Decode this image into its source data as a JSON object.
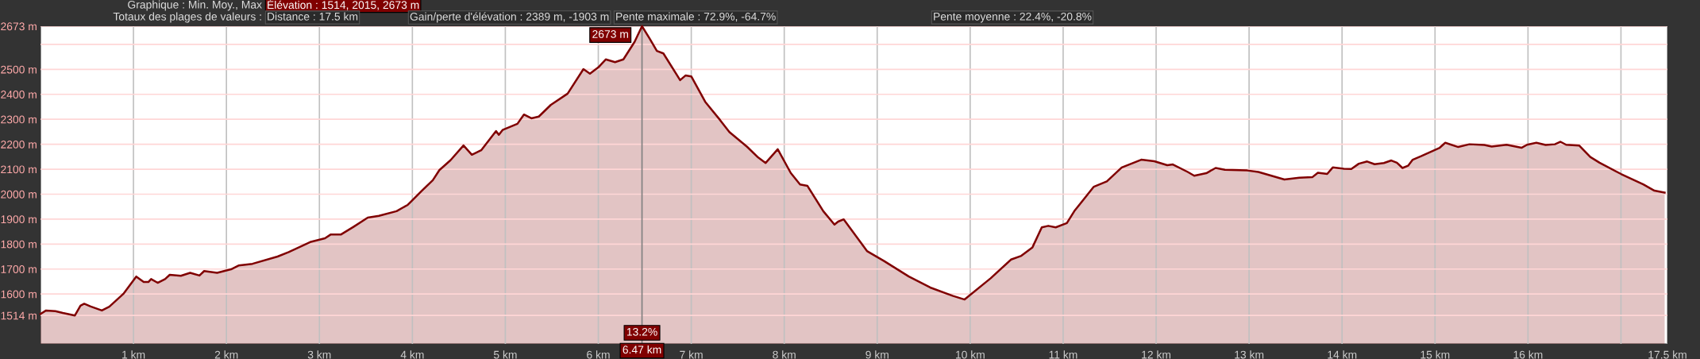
{
  "chart_data": {
    "type": "area",
    "title": "Graphique : Min. Moy., Max",
    "subtitle": "Élévation : 1514, 2015, 2673 m",
    "annotations": [
      "Totaux des plages de valeurs :",
      "Distance : 17.5 km",
      "Gain/perte d'élévation : 2389 m, -1903 m",
      "Pente maximale : 72.9%, -64.7%",
      "Pente moyenne : 22.4%, -20.8%",
      {
        "text": "2673 m",
        "x": 6.47,
        "y": 2673
      },
      {
        "text": "13.2%",
        "x": 6.47
      }
    ],
    "x": [
      0,
      0.06,
      0.16,
      0.24,
      0.37,
      0.43,
      0.47,
      0.54,
      0.66,
      0.74,
      0.89,
      1.03,
      1.11,
      1.16,
      1.19,
      1.26,
      1.34,
      1.39,
      1.51,
      1.61,
      1.71,
      1.76,
      1.9,
      2.05,
      2.13,
      2.28,
      2.55,
      2.67,
      2.9,
      3.06,
      3.12,
      3.23,
      3.37,
      3.52,
      3.64,
      3.83,
      3.95,
      4.1,
      4.22,
      4.29,
      4.41,
      4.55,
      4.64,
      4.74,
      4.9,
      4.93,
      4.97,
      5.13,
      5.2,
      5.28,
      5.36,
      5.49,
      5.67,
      5.84,
      5.91,
      6.0,
      6.08,
      6.18,
      6.27,
      6.39,
      6.47,
      6.55,
      6.63,
      6.7,
      6.88,
      6.94,
      7.0,
      7.15,
      7.31,
      7.41,
      7.6,
      7.72,
      7.8,
      7.93,
      8.07,
      8.17,
      8.25,
      8.42,
      8.54,
      8.58,
      8.64,
      8.89,
      9.07,
      9.34,
      9.57,
      9.81,
      9.94,
      10.22,
      10.44,
      10.55,
      10.67,
      10.77,
      10.84,
      10.92,
      11.04,
      11.12,
      11.33,
      11.47,
      11.63,
      11.84,
      11.98,
      12.12,
      12.18,
      12.34,
      12.41,
      12.54,
      12.64,
      12.74,
      12.98,
      13.1,
      13.24,
      13.38,
      13.54,
      13.68,
      13.74,
      13.84,
      13.9,
      14.02,
      14.1,
      14.18,
      14.27,
      14.35,
      14.45,
      14.53,
      14.59,
      14.65,
      14.71,
      14.76,
      14.85,
      15.05,
      15.11,
      15.25,
      15.37,
      15.53,
      15.61,
      15.77,
      15.93,
      15.99,
      16.09,
      16.19,
      16.29,
      16.35,
      16.41,
      16.55,
      16.67,
      16.77,
      17.0,
      17.24,
      17.36,
      17.47
    ],
    "series": [
      {
        "color": "#800000",
        "values": [
          1520,
          1534,
          1531,
          1524,
          1514,
          1553,
          1561,
          1550,
          1534,
          1549,
          1600,
          1670,
          1648,
          1648,
          1660,
          1645,
          1660,
          1677,
          1673,
          1685,
          1674,
          1692,
          1685,
          1699,
          1714,
          1721,
          1750,
          1768,
          1808,
          1823,
          1838,
          1838,
          1870,
          1906,
          1913,
          1932,
          1957,
          2013,
          2056,
          2096,
          2136,
          2195,
          2158,
          2176,
          2253,
          2238,
          2257,
          2282,
          2319,
          2304,
          2311,
          2358,
          2403,
          2501,
          2483,
          2508,
          2540,
          2529,
          2540,
          2610,
          2673,
          2625,
          2574,
          2564,
          2457,
          2476,
          2472,
          2370,
          2297,
          2249,
          2190,
          2147,
          2125,
          2180,
          2085,
          2039,
          2033,
          1932,
          1878,
          1890,
          1899,
          1772,
          1733,
          1670,
          1626,
          1593,
          1578,
          1663,
          1738,
          1753,
          1787,
          1867,
          1873,
          1867,
          1884,
          1932,
          2030,
          2051,
          2107,
          2138,
          2132,
          2116,
          2119,
          2089,
          2074,
          2084,
          2105,
          2098,
          2095,
          2089,
          2074,
          2059,
          2066,
          2068,
          2086,
          2081,
          2107,
          2102,
          2101,
          2122,
          2131,
          2120,
          2125,
          2135,
          2126,
          2105,
          2114,
          2138,
          2152,
          2186,
          2206,
          2189,
          2200,
          2197,
          2191,
          2198,
          2186,
          2198,
          2206,
          2197,
          2200,
          2210,
          2198,
          2195,
          2149,
          2126,
          2081,
          2039,
          2014,
          2006
        ]
      }
    ],
    "xlim": [
      0,
      17.5
    ],
    "xticks": [
      {
        "value": 1,
        "label": "1 km"
      },
      {
        "value": 2,
        "label": "2 km"
      },
      {
        "value": 3,
        "label": "3 km"
      },
      {
        "value": 4,
        "label": "4 km"
      },
      {
        "value": 5,
        "label": "5 km"
      },
      {
        "value": 6,
        "label": "6 km"
      },
      {
        "value": 7,
        "label": "7 km"
      },
      {
        "value": 8,
        "label": "8 km"
      },
      {
        "value": 9,
        "label": "9 km"
      },
      {
        "value": 10,
        "label": "10 km"
      },
      {
        "value": 11,
        "label": "11 km"
      },
      {
        "value": 12,
        "label": "12 km"
      },
      {
        "value": 13,
        "label": "13 km"
      },
      {
        "value": 14,
        "label": "14 km"
      },
      {
        "value": 15,
        "label": "15 km"
      },
      {
        "value": 16,
        "label": "16 km"
      },
      {
        "value": 17,
        "label": null
      },
      {
        "value": 17.5,
        "label": "17.5 km"
      }
    ],
    "ylim": [
      1400,
      2673
    ],
    "yticks": [
      {
        "value": 1514,
        "label": "1514 m"
      },
      {
        "value": 1600,
        "label": "1600 m"
      },
      {
        "value": 1700,
        "label": "1700 m"
      },
      {
        "value": 1800,
        "label": "1800 m"
      },
      {
        "value": 1900,
        "label": "1900 m"
      },
      {
        "value": 2000,
        "label": "2000 m"
      },
      {
        "value": 2100,
        "label": "2100 m"
      },
      {
        "value": 2200,
        "label": "2200 m"
      },
      {
        "value": 2300,
        "label": "2300 m"
      },
      {
        "value": 2400,
        "label": "2400 m"
      },
      {
        "value": 2500,
        "label": "2500 m"
      },
      {
        "value": 2600,
        "label": null
      },
      {
        "value": 2673,
        "label": "2673 m"
      }
    ],
    "ref_lines": [
      {
        "axis": "x",
        "value": 6.47,
        "label": "6.47 km",
        "color": "#808080"
      }
    ],
    "grid": true
  }
}
